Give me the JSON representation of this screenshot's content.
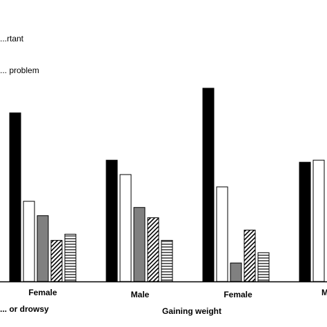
{
  "chart_data": {
    "type": "bar",
    "title": "",
    "xlabel": "",
    "ylabel": "",
    "legend": {
      "placement": "top-left",
      "entries": [
        "...rtant",
        "... problem"
      ]
    },
    "categories": [
      "Female",
      "Male",
      "Female",
      "M..."
    ],
    "group_labels": [
      "... or drowsy",
      "Gaining weight"
    ],
    "series": [
      {
        "pattern": "solid-black",
        "values": [
          82,
          59,
          94,
          58
        ]
      },
      {
        "pattern": "white",
        "values": [
          39,
          52,
          46,
          59
        ]
      },
      {
        "pattern": "solid-gray",
        "values": [
          32,
          36,
          9,
          null
        ]
      },
      {
        "pattern": "diagonal-hatch",
        "values": [
          20,
          31,
          25,
          null
        ]
      },
      {
        "pattern": "horizontal-hatch",
        "values": [
          23,
          20,
          14,
          null
        ]
      }
    ],
    "ylim": [
      0,
      100
    ],
    "grid": false
  }
}
